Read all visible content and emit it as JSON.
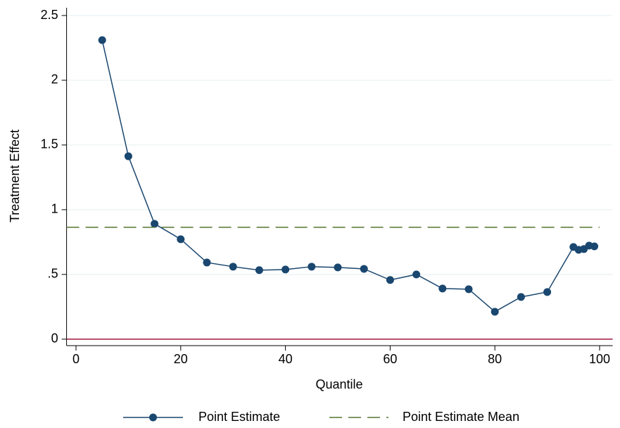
{
  "chart_data": {
    "type": "line",
    "x_label": "Quantile",
    "y_label": "Treatment Effect",
    "x": [
      5,
      10,
      15,
      20,
      25,
      30,
      35,
      40,
      45,
      50,
      55,
      60,
      65,
      70,
      75,
      80,
      85,
      90,
      95,
      96,
      97,
      98,
      99
    ],
    "series": [
      {
        "name": "Point Estimate",
        "color": "#1a476f",
        "values": [
          2.31,
          1.413,
          0.891,
          0.772,
          0.592,
          0.56,
          0.533,
          0.538,
          0.56,
          0.554,
          0.543,
          0.457,
          0.5,
          0.391,
          0.386,
          0.212,
          0.326,
          0.364,
          0.712,
          0.69,
          0.696,
          0.723,
          0.717
        ]
      },
      {
        "name": "Point Estimate Mean",
        "color": "#55752f",
        "value": 0.864,
        "dash": true
      }
    ],
    "reference_line": {
      "value": 0,
      "color": "#a0153e"
    },
    "xlim": [
      -1.8,
      102.5
    ],
    "ylim": [
      -0.05,
      2.56
    ],
    "xticks": [
      0,
      20,
      40,
      60,
      80,
      100
    ],
    "yticks": [
      0,
      {
        "value": 0.5,
        "label": ".5"
      },
      1,
      1.5,
      2,
      2.5
    ],
    "grid": true,
    "legend": "bottom"
  }
}
